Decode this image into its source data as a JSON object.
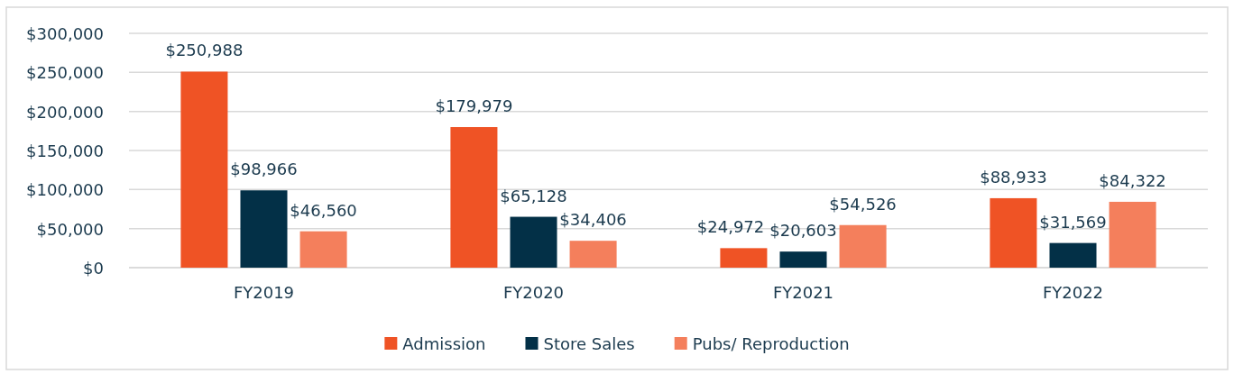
{
  "chart_data": {
    "type": "bar",
    "categories": [
      "FY2019",
      "FY2020",
      "FY2021",
      "FY2022"
    ],
    "series": [
      {
        "name": "Admission",
        "color": "#ef5325",
        "values": [
          250988,
          179979,
          24972,
          88933
        ],
        "value_labels": [
          "$250,988",
          "$179,979",
          "$24,972",
          "$88,933"
        ]
      },
      {
        "name": "Store Sales",
        "color": "#033047",
        "values": [
          98966,
          65128,
          20603,
          31569
        ],
        "value_labels": [
          "$98,966",
          "$65,128",
          "$20,603",
          "$31,569"
        ]
      },
      {
        "name": "Pubs/ Reproduction",
        "color": "#f47f5c",
        "values": [
          46560,
          34406,
          54526,
          84322
        ],
        "value_labels": [
          "$46,560",
          "$34,406",
          "$54,526",
          "$84,322"
        ]
      }
    ],
    "ylim": [
      0,
      300000
    ],
    "yticks": [
      {
        "value": 0,
        "label": "$0"
      },
      {
        "value": 50000,
        "label": "$50,000"
      },
      {
        "value": 100000,
        "label": "$100,000"
      },
      {
        "value": 150000,
        "label": "$150,000"
      },
      {
        "value": 200000,
        "label": "$200,000"
      },
      {
        "value": 250000,
        "label": "$250,000"
      },
      {
        "value": 300000,
        "label": "$300,000"
      }
    ],
    "grid": "y",
    "legend": "bottom"
  }
}
